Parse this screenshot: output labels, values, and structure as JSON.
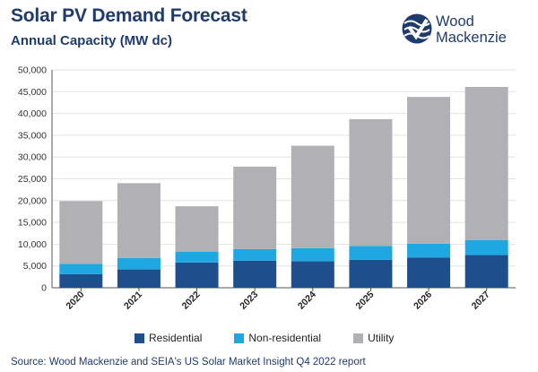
{
  "header": {
    "title": "Solar PV Demand Forecast",
    "subtitle": "Annual Capacity (MW dc)"
  },
  "logo": {
    "line1": "Wood",
    "line2": "Mackenzie"
  },
  "source": "Source: Wood Mackenzie and SEIA's US Solar Market Insight Q4 2022 report",
  "colors": {
    "residential": "#1f4e8c",
    "non_residential": "#1ea7e1",
    "utility": "#b1b1b5",
    "logo": "#1f3b6e"
  },
  "chart_data": {
    "type": "bar",
    "stacked": true,
    "title": "Solar PV Demand Forecast",
    "ylabel": "Annual Capacity (MW dc)",
    "xlabel": "",
    "categories": [
      "2020",
      "2021",
      "2022",
      "2023",
      "2024",
      "2025",
      "2026",
      "2027"
    ],
    "ylim": [
      0,
      50000
    ],
    "yticks": [
      "0",
      "5,000",
      "10,000",
      "15,000",
      "20,000",
      "25,000",
      "30,000",
      "35,000",
      "40,000",
      "45,000",
      "50,000"
    ],
    "ytick_values": [
      0,
      5000,
      10000,
      15000,
      20000,
      25000,
      30000,
      35000,
      40000,
      45000,
      50000
    ],
    "grid": true,
    "legend_position": "bottom",
    "series": [
      {
        "name": "Residential",
        "values": [
          3100,
          4200,
          5800,
          6200,
          6100,
          6400,
          6900,
          7500
        ]
      },
      {
        "name": "Non-residential",
        "values": [
          2400,
          2600,
          2500,
          2700,
          3000,
          3200,
          3200,
          3400
        ]
      },
      {
        "name": "Utility",
        "values": [
          14400,
          17200,
          10400,
          18900,
          23500,
          29100,
          33700,
          35200
        ]
      }
    ]
  }
}
